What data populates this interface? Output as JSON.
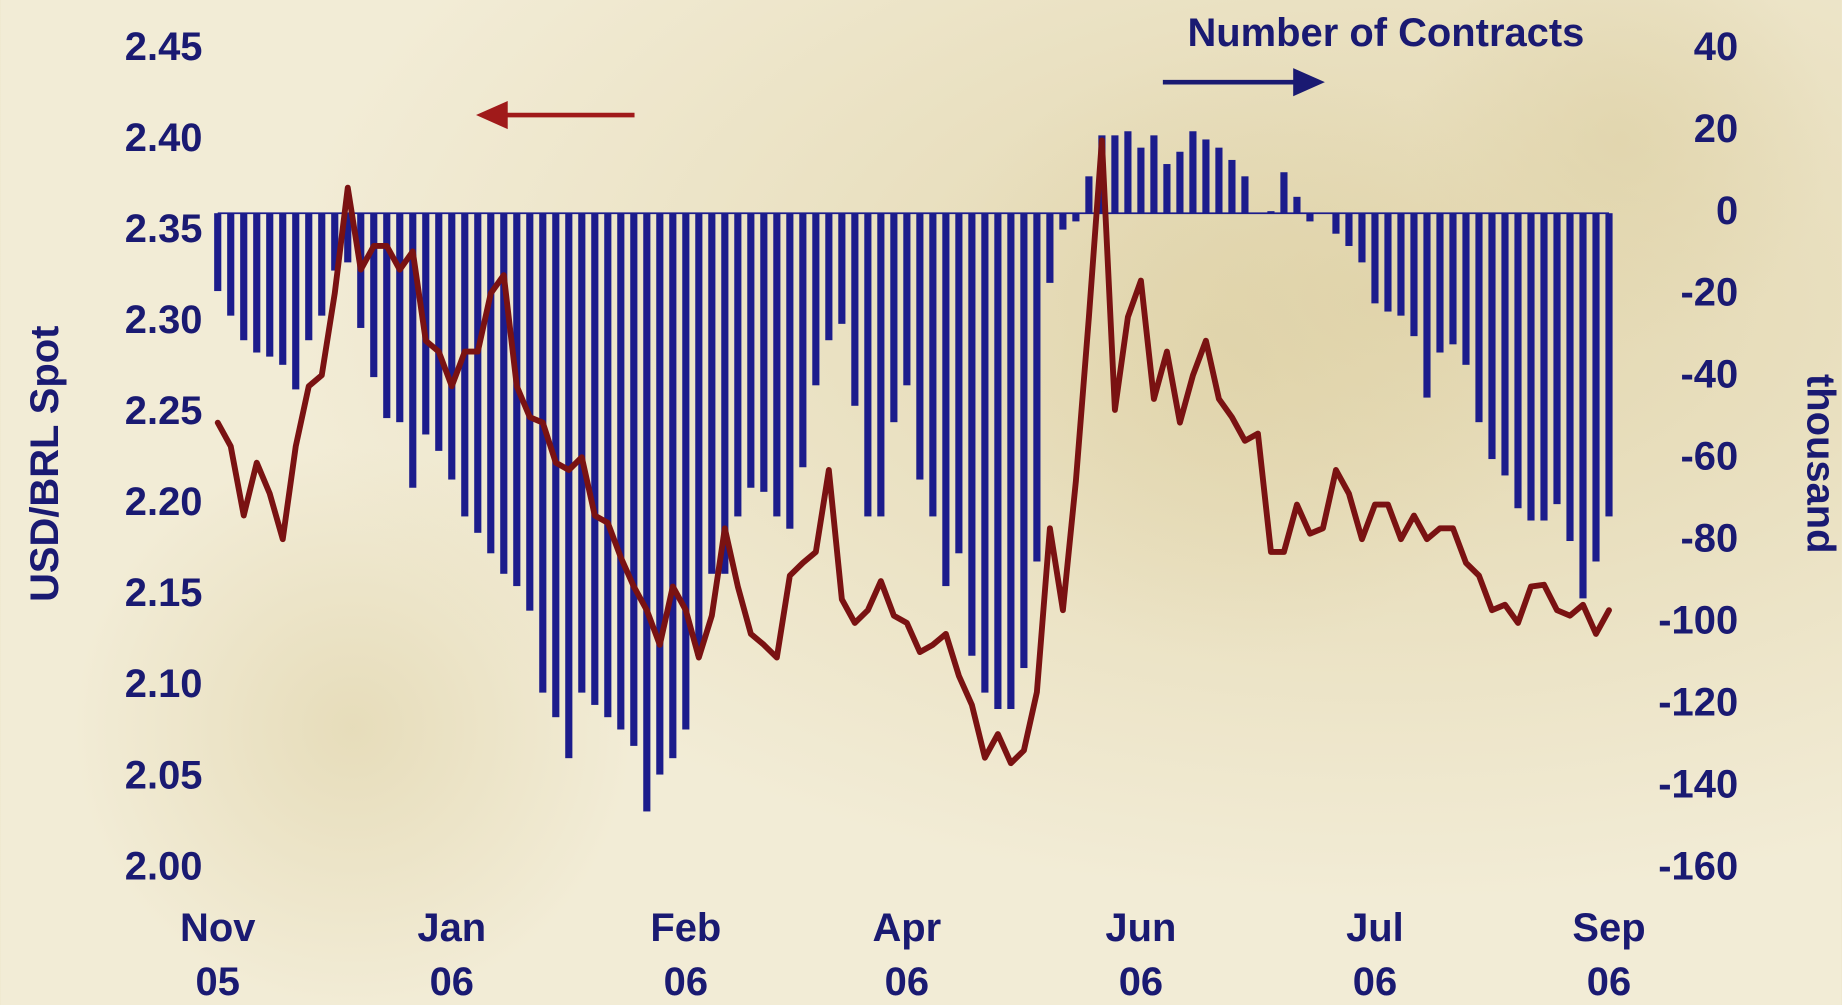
{
  "chart_data": {
    "type": "combo",
    "categories": [
      "Nov\n05",
      null,
      null,
      null,
      null,
      null,
      null,
      null,
      null,
      null,
      null,
      null,
      null,
      null,
      null,
      null,
      null,
      null,
      "Jan\n06",
      null,
      null,
      null,
      null,
      null,
      null,
      null,
      null,
      null,
      null,
      null,
      null,
      null,
      null,
      null,
      null,
      null,
      "Feb\n06",
      null,
      null,
      null,
      null,
      null,
      null,
      null,
      null,
      null,
      null,
      null,
      null,
      null,
      null,
      null,
      null,
      "Apr\n06",
      null,
      null,
      null,
      null,
      null,
      null,
      null,
      null,
      null,
      null,
      null,
      null,
      null,
      null,
      null,
      null,
      null,
      "Jun\n06",
      null,
      null,
      null,
      null,
      null,
      null,
      null,
      null,
      null,
      null,
      null,
      null,
      null,
      null,
      null,
      null,
      null,
      "Jul\n06",
      null,
      null,
      null,
      null,
      null,
      null,
      null,
      null,
      null,
      null,
      null,
      null,
      null,
      null,
      null,
      null,
      null,
      "Sep\n06"
    ],
    "series": [
      {
        "name": "Number of Contracts",
        "type": "bar",
        "axis": "y2",
        "color": "#1c1c8c",
        "values": [
          -19,
          -25,
          -31,
          -34,
          -35,
          -37,
          -43,
          -31,
          -25,
          -14,
          -12,
          -28,
          -40,
          -50,
          -51,
          -67,
          -54,
          -58,
          -65,
          -74,
          -78,
          -83,
          -88,
          -91,
          -97,
          -117,
          -123,
          -133,
          -117,
          -120,
          -123,
          -126,
          -130,
          -146,
          -137,
          -133,
          -126,
          -108,
          -88,
          -88,
          -74,
          -67,
          -68,
          -74,
          -77,
          -62,
          -42,
          -31,
          -27,
          -47,
          -74,
          -74,
          -51,
          -42,
          -65,
          -74,
          -91,
          -83,
          -108,
          -117,
          -121,
          -121,
          -111,
          -85,
          -17,
          -4,
          -2,
          9,
          19,
          19,
          20,
          16,
          19,
          12,
          15,
          20,
          18,
          16,
          13,
          9,
          0,
          0.5,
          10,
          4,
          -2,
          0,
          -5,
          -8,
          -12,
          -22,
          -24,
          -25,
          -30,
          -45,
          -34,
          -32,
          -37,
          -51,
          -60,
          -64,
          -72,
          -75,
          -75,
          -71,
          -80,
          -94,
          -85,
          -74
        ]
      },
      {
        "name": "USD/BRL Spot",
        "type": "line",
        "color": "#7a1212",
        "values": [
          2.245,
          2.232,
          2.194,
          2.223,
          2.206,
          2.181,
          2.232,
          2.265,
          2.271,
          2.316,
          2.374,
          2.329,
          2.342,
          2.342,
          2.329,
          2.339,
          2.29,
          2.284,
          2.265,
          2.284,
          2.284,
          2.316,
          2.326,
          2.265,
          2.248,
          2.245,
          2.223,
          2.219,
          2.226,
          2.194,
          2.19,
          2.171,
          2.155,
          2.142,
          2.123,
          2.155,
          2.142,
          2.116,
          2.139,
          2.187,
          2.155,
          2.129,
          2.123,
          2.116,
          2.161,
          2.168,
          2.174,
          2.219,
          2.148,
          2.135,
          2.142,
          2.158,
          2.139,
          2.135,
          2.119,
          2.123,
          2.129,
          2.106,
          2.09,
          2.061,
          2.074,
          2.058,
          2.065,
          2.097,
          2.187,
          2.142,
          2.213,
          2.303,
          2.4,
          2.252,
          2.303,
          2.323,
          2.258,
          2.284,
          2.245,
          2.271,
          2.29,
          2.258,
          2.248,
          2.235,
          2.239,
          2.174,
          2.174,
          2.2,
          2.184,
          2.187,
          2.219,
          2.206,
          2.181,
          2.2,
          2.2,
          2.181,
          2.194,
          2.181,
          2.187,
          2.187,
          2.168,
          2.161,
          2.142,
          2.145,
          2.135,
          2.155,
          2.156,
          2.142,
          2.139,
          2.145,
          2.129,
          2.142
        ]
      }
    ],
    "ylim": [
      2,
      2.45
    ],
    "yticks": [
      {
        "value": 2,
        "label": "2.00"
      },
      2.05,
      {
        "value": 2.1,
        "label": "2.10"
      },
      2.15,
      {
        "value": 2.2,
        "label": "2.20"
      },
      2.25,
      {
        "value": 2.3,
        "label": "2.30"
      },
      2.35,
      {
        "value": 2.4,
        "label": "2.40"
      },
      2.45
    ],
    "y2lim": [
      -160,
      40
    ],
    "y2ticks": [
      -160,
      -140,
      -120,
      -100,
      -80,
      -60,
      -40,
      -20,
      0,
      20,
      40
    ],
    "y2label": "thousand",
    "grid": false
  }
}
